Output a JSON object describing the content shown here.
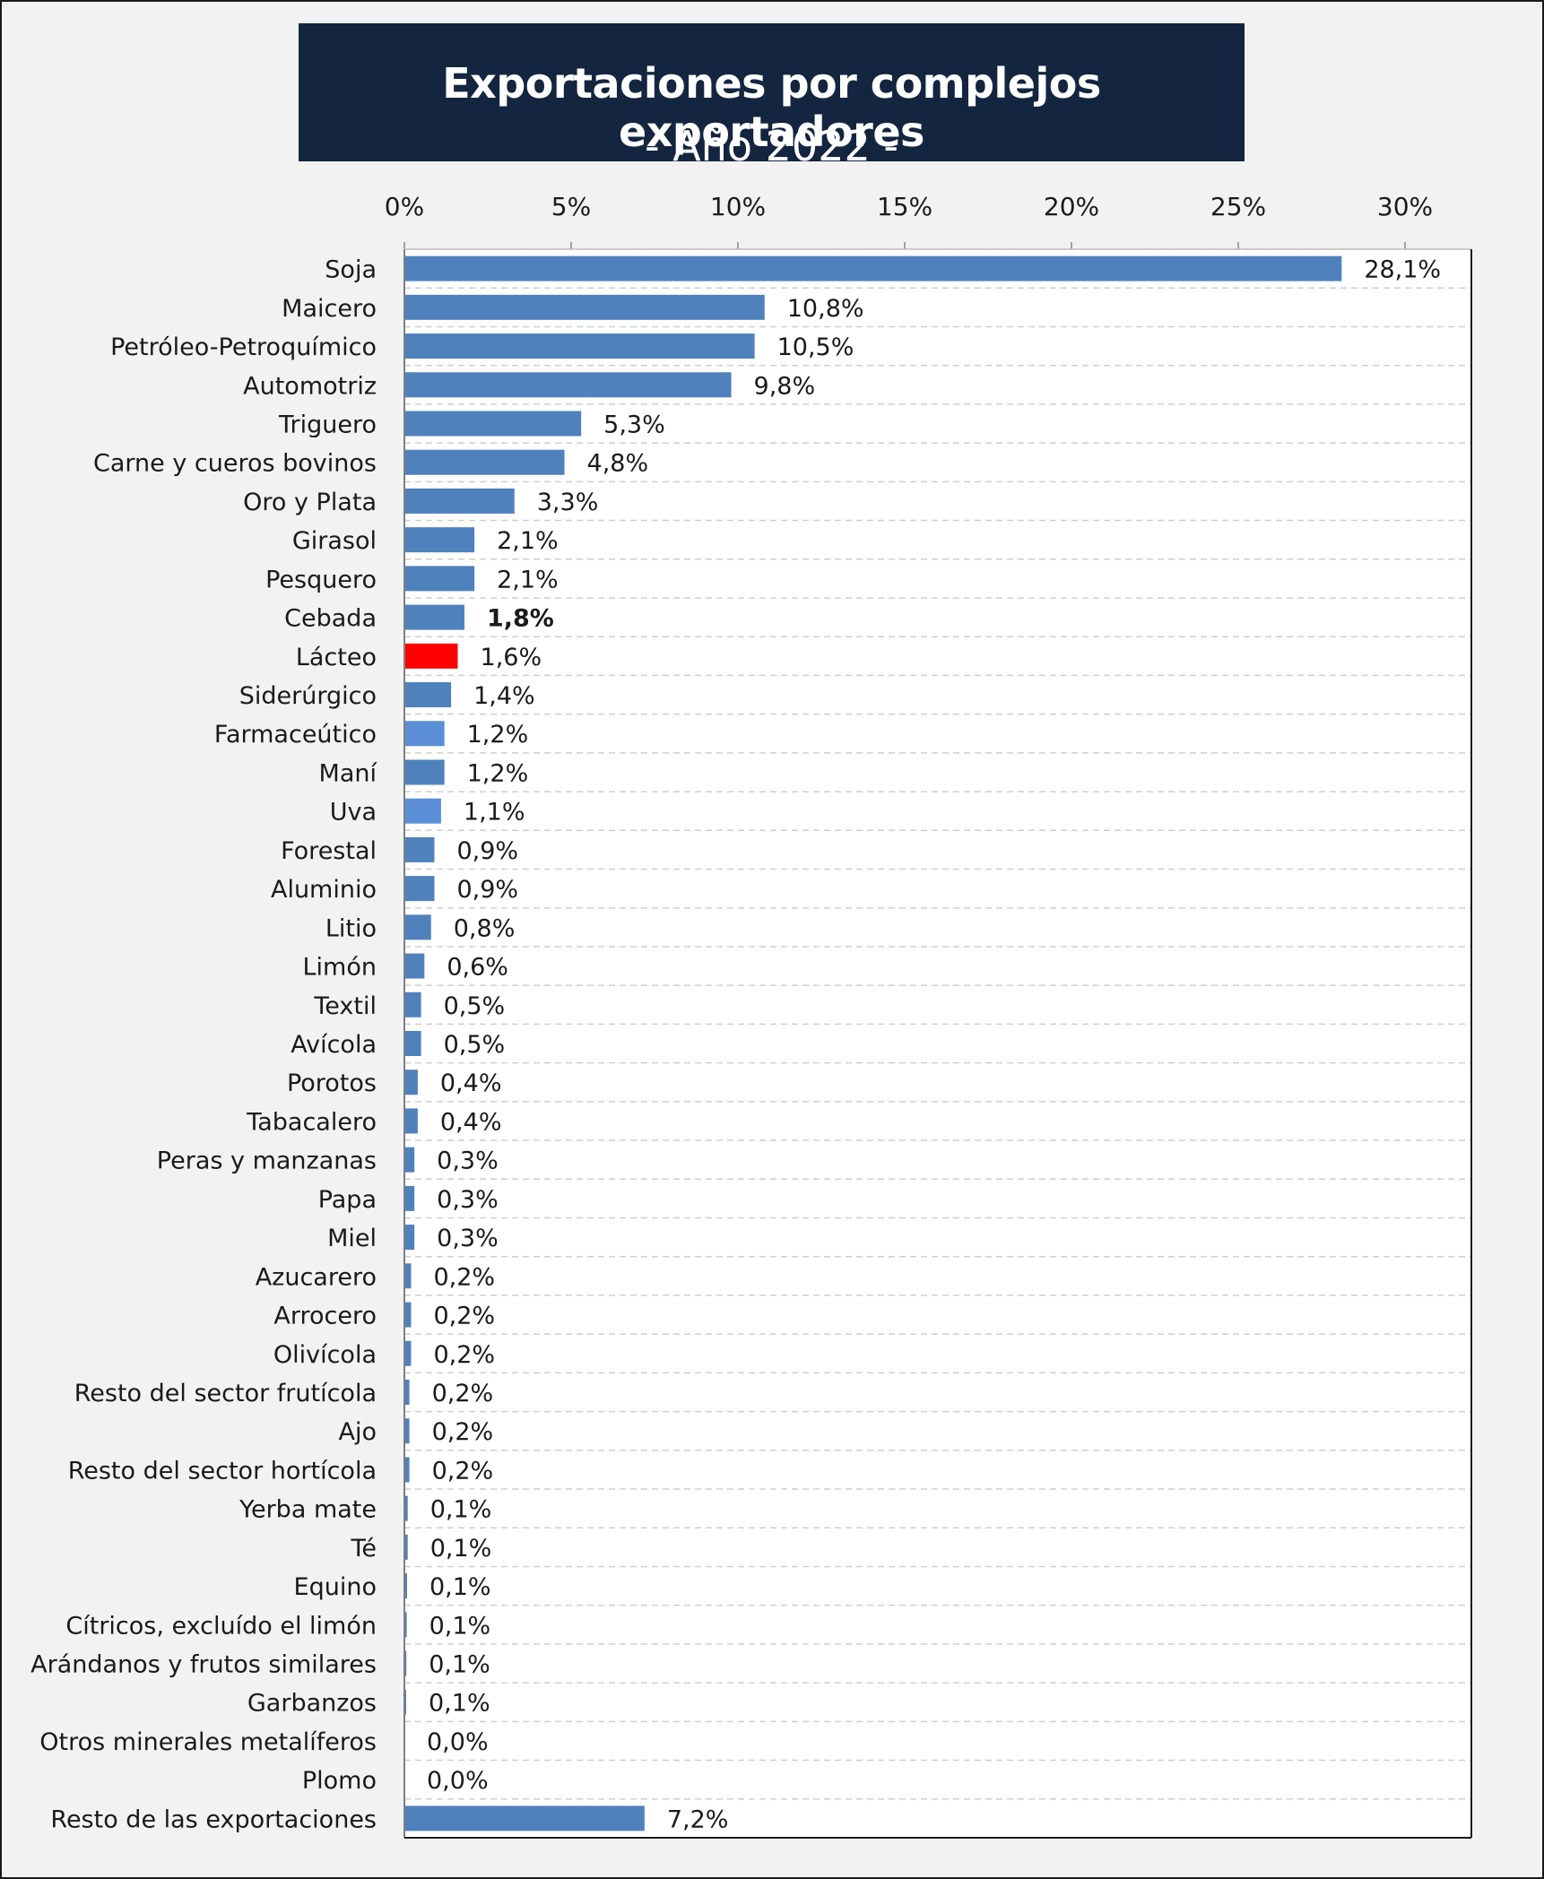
{
  "chart_data": {
    "type": "bar",
    "orientation": "horizontal",
    "title": "Exportaciones por complejos exportadores",
    "subtitle": "- Año 2022 -",
    "xlim": [
      0,
      30
    ],
    "x_ticks": [
      "0%",
      "5%",
      "10%",
      "15%",
      "20%",
      "25%",
      "30%"
    ],
    "x_axis_position": "top",
    "grid": "dashed horizontal",
    "colors": {
      "default": "#4f81bd",
      "highlight": "#ff0000",
      "light": "#5b8fd8"
    },
    "categories": [
      {
        "name": "Soja",
        "value": 28.1,
        "label": "28,1%",
        "color": "default",
        "bold": false
      },
      {
        "name": "Maicero",
        "value": 10.8,
        "label": "10,8%",
        "color": "default",
        "bold": false
      },
      {
        "name": "Petróleo-Petroquímico",
        "value": 10.5,
        "label": "10,5%",
        "color": "default",
        "bold": false
      },
      {
        "name": "Automotriz",
        "value": 9.8,
        "label": "9,8%",
        "color": "default",
        "bold": false
      },
      {
        "name": "Triguero",
        "value": 5.3,
        "label": "5,3%",
        "color": "default",
        "bold": false
      },
      {
        "name": "Carne y cueros bovinos",
        "value": 4.8,
        "label": "4,8%",
        "color": "default",
        "bold": false
      },
      {
        "name": "Oro y Plata",
        "value": 3.3,
        "label": "3,3%",
        "color": "default",
        "bold": false
      },
      {
        "name": "Girasol",
        "value": 2.1,
        "label": "2,1%",
        "color": "default",
        "bold": false
      },
      {
        "name": "Pesquero",
        "value": 2.1,
        "label": "2,1%",
        "color": "default",
        "bold": false
      },
      {
        "name": "Cebada",
        "value": 1.8,
        "label": "1,8%",
        "color": "default",
        "bold": true
      },
      {
        "name": "Lácteo",
        "value": 1.6,
        "label": "1,6%",
        "color": "highlight",
        "bold": false
      },
      {
        "name": "Siderúrgico",
        "value": 1.4,
        "label": "1,4%",
        "color": "default",
        "bold": false
      },
      {
        "name": "Farmaceútico",
        "value": 1.2,
        "label": "1,2%",
        "color": "light",
        "bold": false
      },
      {
        "name": "Maní",
        "value": 1.2,
        "label": "1,2%",
        "color": "default",
        "bold": false
      },
      {
        "name": "Uva",
        "value": 1.1,
        "label": "1,1%",
        "color": "light",
        "bold": false
      },
      {
        "name": "Forestal",
        "value": 0.9,
        "label": "0,9%",
        "color": "default",
        "bold": false
      },
      {
        "name": "Aluminio",
        "value": 0.9,
        "label": "0,9%",
        "color": "default",
        "bold": false
      },
      {
        "name": "Litio",
        "value": 0.8,
        "label": "0,8%",
        "color": "default",
        "bold": false
      },
      {
        "name": "Limón",
        "value": 0.6,
        "label": "0,6%",
        "color": "default",
        "bold": false
      },
      {
        "name": "Textil",
        "value": 0.5,
        "label": "0,5%",
        "color": "default",
        "bold": false
      },
      {
        "name": "Avícola",
        "value": 0.5,
        "label": "0,5%",
        "color": "default",
        "bold": false
      },
      {
        "name": "Porotos",
        "value": 0.4,
        "label": "0,4%",
        "color": "default",
        "bold": false
      },
      {
        "name": "Tabacalero",
        "value": 0.4,
        "label": "0,4%",
        "color": "default",
        "bold": false
      },
      {
        "name": "Peras y manzanas",
        "value": 0.3,
        "label": "0,3%",
        "color": "default",
        "bold": false
      },
      {
        "name": "Papa",
        "value": 0.3,
        "label": "0,3%",
        "color": "default",
        "bold": false
      },
      {
        "name": "Miel",
        "value": 0.3,
        "label": "0,3%",
        "color": "default",
        "bold": false
      },
      {
        "name": "Azucarero",
        "value": 0.2,
        "label": "0,2%",
        "color": "default",
        "bold": false
      },
      {
        "name": "Arrocero",
        "value": 0.2,
        "label": "0,2%",
        "color": "default",
        "bold": false
      },
      {
        "name": "Olivícola",
        "value": 0.2,
        "label": "0,2%",
        "color": "default",
        "bold": false
      },
      {
        "name": "Resto del sector frutícola",
        "value": 0.15,
        "label": "0,2%",
        "color": "default",
        "bold": false
      },
      {
        "name": "Ajo",
        "value": 0.15,
        "label": "0,2%",
        "color": "default",
        "bold": false
      },
      {
        "name": "Resto del sector hortícola",
        "value": 0.15,
        "label": "0,2%",
        "color": "default",
        "bold": false
      },
      {
        "name": "Yerba mate",
        "value": 0.1,
        "label": "0,1%",
        "color": "default",
        "bold": false
      },
      {
        "name": "Té",
        "value": 0.1,
        "label": "0,1%",
        "color": "default",
        "bold": false
      },
      {
        "name": "Equino",
        "value": 0.08,
        "label": "0,1%",
        "color": "default",
        "bold": false
      },
      {
        "name": "Cítricos, excluído el limón",
        "value": 0.07,
        "label": "0,1%",
        "color": "default",
        "bold": false
      },
      {
        "name": "Arándanos y frutos similares",
        "value": 0.06,
        "label": "0,1%",
        "color": "default",
        "bold": false
      },
      {
        "name": "Garbanzos",
        "value": 0.05,
        "label": "0,1%",
        "color": "default",
        "bold": false
      },
      {
        "name": "Otros minerales metalíferos",
        "value": 0.0,
        "label": "0,0%",
        "color": "default",
        "bold": false
      },
      {
        "name": "Plomo",
        "value": 0.0,
        "label": "0,0%",
        "color": "default",
        "bold": false
      },
      {
        "name": "Resto de las exportaciones",
        "value": 7.2,
        "label": "7,2%",
        "color": "default",
        "bold": false
      }
    ]
  }
}
